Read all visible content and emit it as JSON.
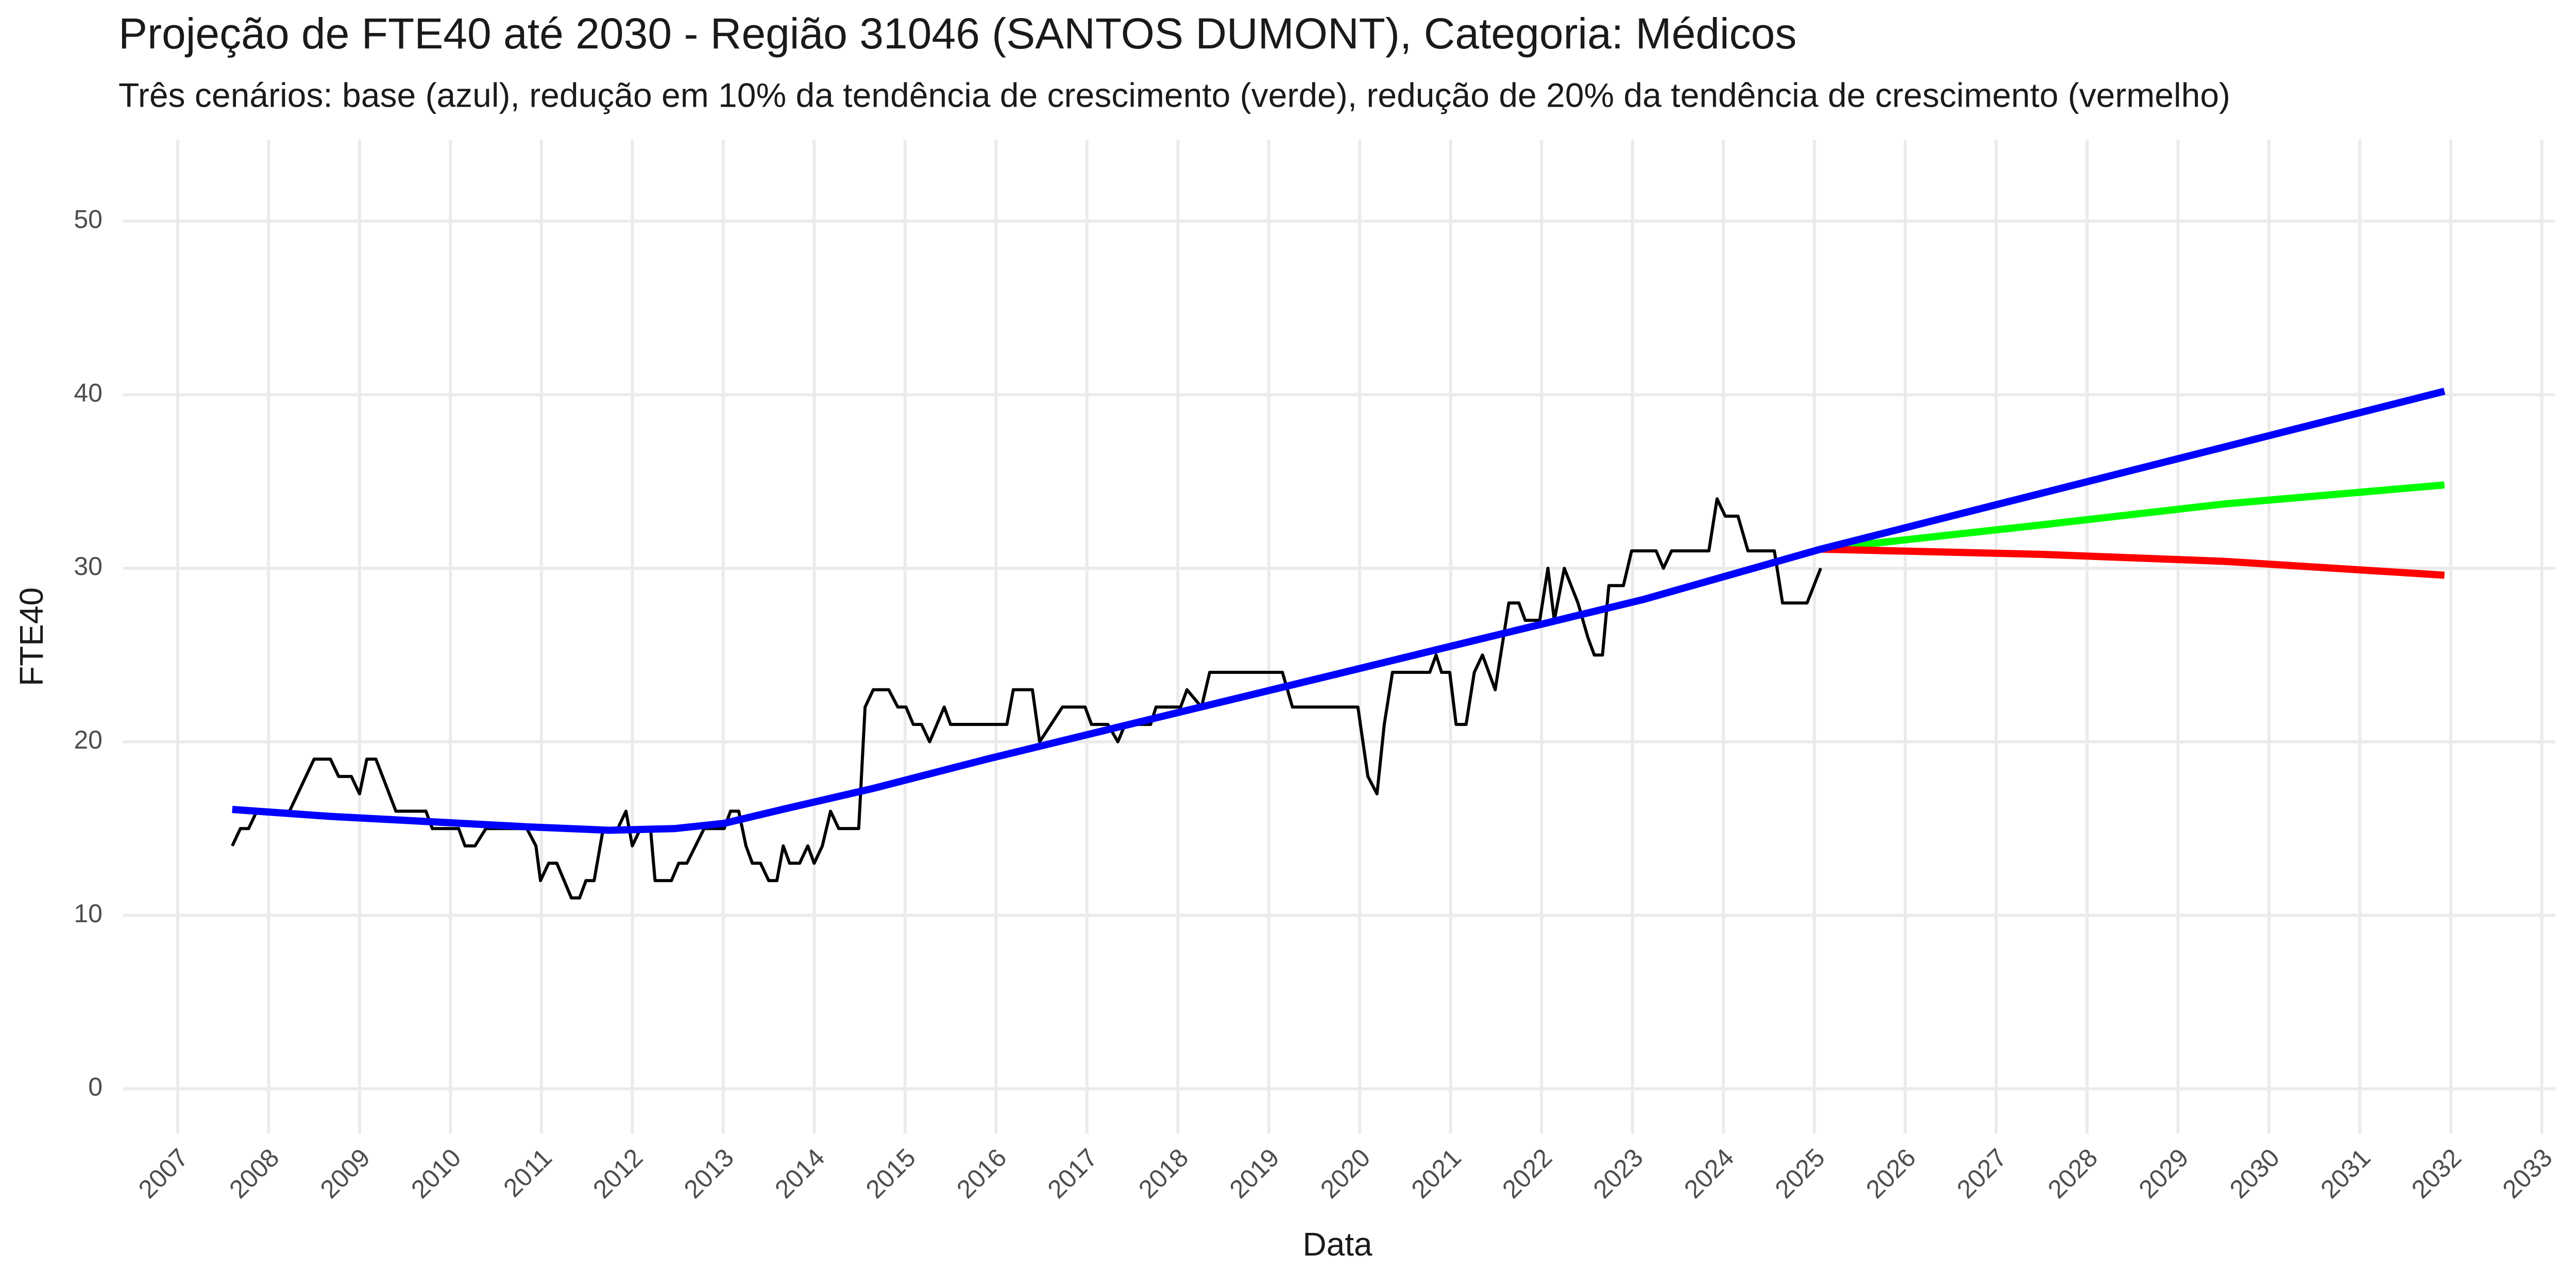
{
  "chart_data": {
    "type": "line",
    "title": "Projeção de FTE40 até 2030 - Região 31046 (SANTOS DUMONT), Categoria: Médicos",
    "subtitle": "Três cenários: base (azul), redução em 10% da tendência de crescimento (verde), redução de 20% da tendência de crescimento (vermelho)",
    "x_label": "Data",
    "y_label": "FTE40",
    "xlim": [
      2006.4,
      2033.15
    ],
    "ylim": [
      -2.6,
      54.7
    ],
    "xticks": [
      2007,
      2008,
      2009,
      2010,
      2011,
      2012,
      2013,
      2014,
      2015,
      2016,
      2017,
      2018,
      2019,
      2020,
      2021,
      2022,
      2023,
      2024,
      2025,
      2026,
      2027,
      2028,
      2029,
      2030,
      2031,
      2032,
      2033
    ],
    "yticks": [
      0,
      10,
      20,
      30,
      40,
      50
    ],
    "grid": true,
    "series": [
      {
        "color": "#000000",
        "width": 6,
        "x": [
          2007.6,
          2007.69,
          2007.78,
          2007.87,
          2007.96,
          2008.23,
          2008.5,
          2008.68,
          2008.77,
          2008.91,
          2009.0,
          2009.08,
          2009.18,
          2009.4,
          2009.73,
          2009.8,
          2010.09,
          2010.16,
          2010.27,
          2010.39,
          2010.75,
          2010.84,
          2010.94,
          2010.99,
          2011.08,
          2011.17,
          2011.33,
          2011.42,
          2011.49,
          2011.58,
          2011.68,
          2011.84,
          2011.93,
          2012.0,
          2012.09,
          2012.2,
          2012.25,
          2012.43,
          2012.51,
          2012.6,
          2012.79,
          2013.01,
          2013.08,
          2013.17,
          2013.25,
          2013.32,
          2013.41,
          2013.5,
          2013.59,
          2013.66,
          2013.73,
          2013.84,
          2013.93,
          2014.0,
          2014.09,
          2014.18,
          2014.27,
          2014.49,
          2014.56,
          2014.65,
          2014.82,
          2014.92,
          2015.01,
          2015.09,
          2015.18,
          2015.27,
          2015.43,
          2015.5,
          2016.12,
          2016.19,
          2016.4,
          2016.48,
          2016.73,
          2016.98,
          2017.05,
          2017.23,
          2017.34,
          2017.42,
          2017.7,
          2017.76,
          2018.03,
          2018.1,
          2018.26,
          2018.35,
          2019.15,
          2019.26,
          2019.98,
          2020.09,
          2020.19,
          2020.27,
          2020.36,
          2020.77,
          2020.84,
          2020.9,
          2020.99,
          2021.06,
          2021.17,
          2021.26,
          2021.35,
          2021.49,
          2021.64,
          2021.75,
          2021.82,
          2021.98,
          2022.07,
          2022.14,
          2022.25,
          2022.4,
          2022.51,
          2022.58,
          2022.67,
          2022.74,
          2022.9,
          2022.99,
          2023.26,
          2023.34,
          2023.43,
          2023.84,
          2023.93,
          2024.02,
          2024.16,
          2024.27,
          2024.56,
          2024.65,
          2024.92,
          2025.07
        ],
        "values": [
          14,
          15,
          15,
          16,
          16,
          16,
          19,
          19,
          18,
          18,
          17,
          19,
          19,
          16,
          16,
          15,
          15,
          14,
          14,
          15,
          15,
          15,
          14,
          12,
          13,
          13,
          11,
          11,
          12,
          12,
          15,
          15,
          16,
          14,
          15,
          15,
          12,
          12,
          13,
          13,
          15,
          15,
          16,
          16,
          14,
          13,
          13,
          12,
          12,
          14,
          13,
          13,
          14,
          13,
          14,
          16,
          15,
          15,
          22,
          23,
          23,
          22,
          22,
          21,
          21,
          20,
          22,
          21,
          21,
          23,
          23,
          20,
          22,
          22,
          21,
          21,
          20,
          21,
          21,
          22,
          22,
          23,
          22,
          24,
          24,
          22,
          22,
          18,
          17,
          21,
          24,
          24,
          25,
          24,
          24,
          21,
          21,
          24,
          25,
          23,
          28,
          28,
          27,
          27,
          30,
          27,
          30,
          28,
          26,
          25,
          25,
          29,
          29,
          31,
          31,
          30,
          31,
          31,
          34,
          33,
          33,
          31,
          31,
          28,
          28,
          30
        ]
      },
      {
        "color": "#00ff00",
        "width": 14,
        "x": [
          2025.07,
          2027.5,
          2029.5,
          2031.93
        ],
        "values": [
          31.1,
          32.5,
          33.7,
          34.8
        ]
      },
      {
        "color": "#ff0000",
        "width": 14,
        "x": [
          2025.07,
          2027.5,
          2029.5,
          2031.93
        ],
        "values": [
          31.1,
          30.8,
          30.4,
          29.6
        ]
      },
      {
        "color": "#0000ff",
        "width": 14,
        "x": [
          2007.6,
          2008.68,
          2009.76,
          2010.84,
          2011.75,
          2012.47,
          2013.01,
          2013.73,
          2014.64,
          2015.9,
          2017.7,
          2019.51,
          2021.31,
          2023.12,
          2025.07,
          2028.5,
          2031.93
        ],
        "values": [
          16.1,
          15.7,
          15.4,
          15.1,
          14.9,
          15.0,
          15.3,
          16.2,
          17.3,
          19.0,
          21.3,
          23.6,
          25.9,
          28.2,
          31.1,
          35.65,
          40.2
        ]
      }
    ]
  }
}
